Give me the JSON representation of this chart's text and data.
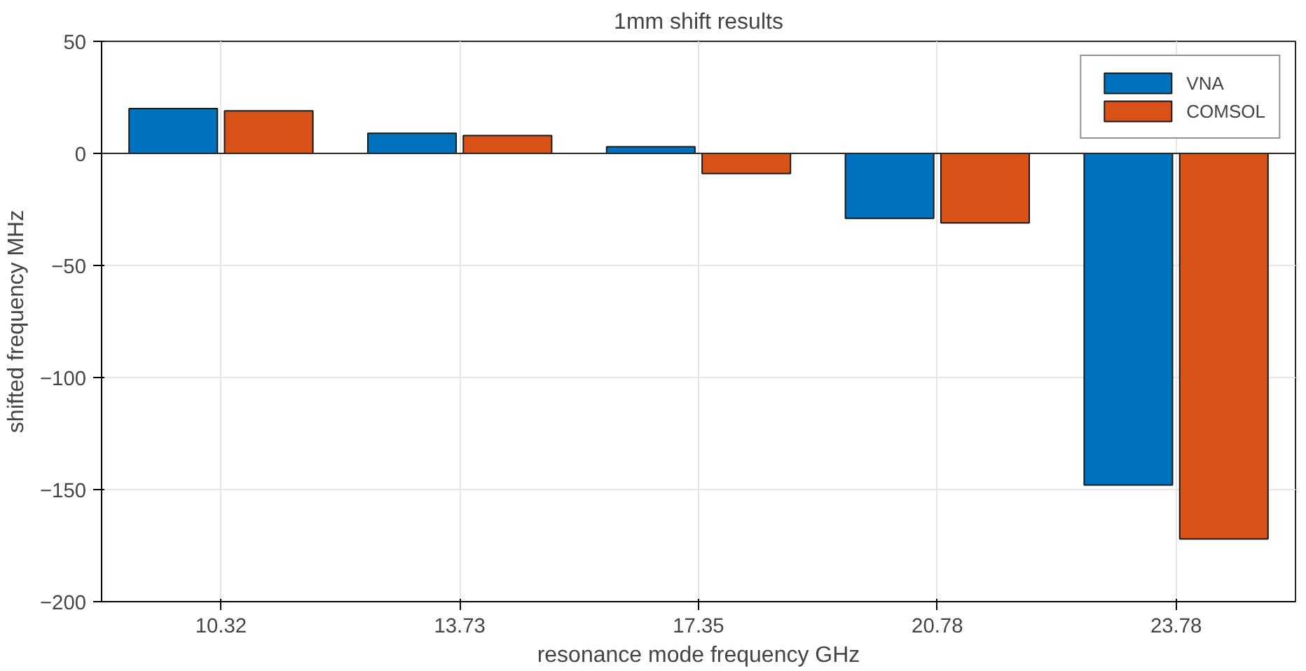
{
  "chart_data": {
    "type": "bar",
    "title": "1mm shift results",
    "xlabel": "resonance mode frequency GHz",
    "ylabel": "shifted frequency MHz",
    "categories": [
      "10.32",
      "13.73",
      "17.35",
      "20.78",
      "23.78"
    ],
    "series": [
      {
        "name": "VNA",
        "color": "#0072bd",
        "values": [
          20,
          9,
          3,
          -29,
          -148
        ]
      },
      {
        "name": "COMSOL",
        "color": "#d95319",
        "values": [
          19,
          8,
          -9,
          -31,
          -172
        ]
      }
    ],
    "ylim": [
      -200,
      50
    ],
    "yticks": [
      -200,
      -150,
      -100,
      -50,
      0,
      50
    ],
    "grid": true,
    "legend": "top right"
  }
}
